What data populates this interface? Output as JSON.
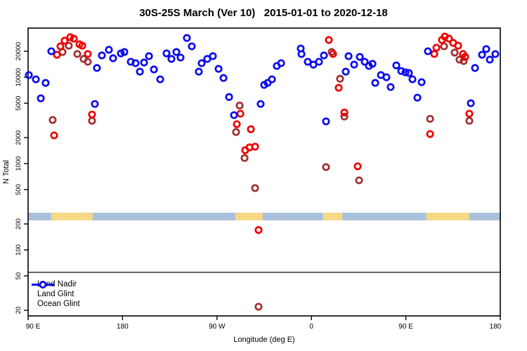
{
  "chart": {
    "title": "30S-25S March (Ver 10)   2015-01-01 to 2020-12-18",
    "xlabel": "Longitude (deg E)",
    "ylabel": "N Total"
  },
  "legend": {
    "items": [
      {
        "label": "Land Nadir",
        "color": "#A12F2F"
      },
      {
        "label": "Land Glint",
        "color": "#EE0000"
      },
      {
        "label": "Ocean Glint",
        "color": "#0B0BEE"
      }
    ]
  },
  "chart_data": {
    "type": "scatter",
    "title": "30S-25S March (Ver 10)   2015-01-01 to 2020-12-18",
    "xlabel": "Longitude (deg E)",
    "ylabel": "N Total",
    "x_axis": {
      "unit": "deg E (wrapping eastward)",
      "range": [
        90,
        540
      ],
      "ticks": [
        {
          "lon": 90,
          "label": "90 E"
        },
        {
          "lon": 180,
          "label": "180"
        },
        {
          "lon": 270,
          "label": "90 W"
        },
        {
          "lon": 360,
          "label": "0"
        },
        {
          "lon": 450,
          "label": "90 E"
        },
        {
          "lon": 540,
          "label": "180"
        }
      ]
    },
    "y_axis": {
      "scale": "log",
      "ticks": [
        20,
        50,
        100,
        200,
        500,
        1000,
        2000,
        5000,
        10000,
        20000
      ],
      "range": [
        16,
        37000
      ]
    },
    "grid": false,
    "legend_position": "bottom-left",
    "hline_value": 55,
    "hline_color": "#222222",
    "surface_band": {
      "value_range": [
        220,
        270
      ],
      "ocean_color": "#A9C1DC",
      "land_color": "#F6D885",
      "segments": [
        {
          "surface": "ocean",
          "from": 90,
          "to": 112
        },
        {
          "surface": "land",
          "from": 112,
          "to": 151.5
        },
        {
          "surface": "ocean",
          "from": 151.5,
          "to": 287.5
        },
        {
          "surface": "land",
          "from": 287.5,
          "to": 313.5
        },
        {
          "surface": "ocean",
          "from": 313.5,
          "to": 371
        },
        {
          "surface": "land",
          "from": 371,
          "to": 389.5
        },
        {
          "surface": "ocean",
          "from": 389.5,
          "to": 469.5
        },
        {
          "surface": "land",
          "from": 469.5,
          "to": 510.5
        },
        {
          "surface": "ocean",
          "from": 510.5,
          "to": 540
        }
      ]
    },
    "series": [
      {
        "name": "Land Nadir",
        "color": "#A12F2F",
        "points": [
          [
            113.4,
            3200
          ],
          [
            122.8,
            19600
          ],
          [
            128.8,
            23200
          ],
          [
            136.9,
            18600
          ],
          [
            142.9,
            16300
          ],
          [
            146.9,
            15100
          ],
          [
            150.9,
            3130
          ],
          [
            288.2,
            2320
          ],
          [
            291.6,
            4700
          ],
          [
            296.3,
            1160
          ],
          [
            306.3,
            520
          ],
          [
            309.6,
            22
          ],
          [
            373.9,
            910
          ],
          [
            379.3,
            19600
          ],
          [
            387.3,
            9600
          ],
          [
            391.4,
            3500
          ],
          [
            405.4,
            640
          ],
          [
            473.1,
            3300
          ],
          [
            486.4,
            22800
          ],
          [
            496.5,
            19300
          ],
          [
            501.1,
            16000
          ],
          [
            505.1,
            15400
          ],
          [
            510.5,
            3130
          ]
        ]
      },
      {
        "name": "Land Glint",
        "color": "#EE0000",
        "points": [
          [
            114.8,
            2120
          ],
          [
            117.5,
            18200
          ],
          [
            120.8,
            22800
          ],
          [
            124.8,
            26500
          ],
          [
            130.2,
            29100
          ],
          [
            133.5,
            28000
          ],
          [
            138.9,
            24100
          ],
          [
            141.6,
            23200
          ],
          [
            146.9,
            18600
          ],
          [
            150.9,
            3700
          ],
          [
            288.9,
            2860
          ],
          [
            292.3,
            3780
          ],
          [
            296.9,
            1430
          ],
          [
            301.0,
            1540
          ],
          [
            302.3,
            2500
          ],
          [
            306.3,
            1570
          ],
          [
            309.6,
            170
          ],
          [
            376.6,
            27000
          ],
          [
            380.6,
            18600
          ],
          [
            386.0,
            7550
          ],
          [
            391.4,
            3900
          ],
          [
            404.1,
            930
          ],
          [
            473.1,
            2200
          ],
          [
            477.1,
            18600
          ],
          [
            479.1,
            22000
          ],
          [
            484.4,
            27000
          ],
          [
            487.1,
            29600
          ],
          [
            491.1,
            28000
          ],
          [
            495.1,
            25000
          ],
          [
            499.8,
            23200
          ],
          [
            504.5,
            18600
          ],
          [
            506.5,
            17200
          ],
          [
            510.5,
            3780
          ]
        ]
      },
      {
        "name": "Ocean Glint",
        "color": "#0B0BEE",
        "points": [
          [
            90.7,
            10600
          ],
          [
            97.4,
            9460
          ],
          [
            102.1,
            5700
          ],
          [
            106.7,
            8600
          ],
          [
            112.1,
            20000
          ],
          [
            153.6,
            4900
          ],
          [
            155.6,
            12800
          ],
          [
            160.3,
            17900
          ],
          [
            167.0,
            20800
          ],
          [
            171.0,
            16600
          ],
          [
            178.4,
            18900
          ],
          [
            181.7,
            19600
          ],
          [
            187.8,
            15100
          ],
          [
            192.4,
            14550
          ],
          [
            196.5,
            11600
          ],
          [
            200.5,
            14800
          ],
          [
            205.2,
            17550
          ],
          [
            209.9,
            12300
          ],
          [
            215.9,
            9460
          ],
          [
            221.9,
            18900
          ],
          [
            226.6,
            16300
          ],
          [
            231.3,
            19600
          ],
          [
            235.3,
            16900
          ],
          [
            241.3,
            28500
          ],
          [
            246.0,
            22800
          ],
          [
            252.7,
            11600
          ],
          [
            255.4,
            14550
          ],
          [
            260.7,
            16300
          ],
          [
            266.1,
            17550
          ],
          [
            271.5,
            12500
          ],
          [
            276.2,
            9800
          ],
          [
            281.5,
            5900
          ],
          [
            286.2,
            3640
          ],
          [
            311.6,
            4900
          ],
          [
            315.0,
            8150
          ],
          [
            318.3,
            8600
          ],
          [
            322.4,
            9460
          ],
          [
            327.0,
            13500
          ],
          [
            331.1,
            14550
          ],
          [
            349.8,
            21500
          ],
          [
            350.5,
            18560
          ],
          [
            356.5,
            15100
          ],
          [
            361.9,
            14000
          ],
          [
            367.2,
            15100
          ],
          [
            371.9,
            17900
          ],
          [
            373.9,
            3080
          ],
          [
            392.7,
            11600
          ],
          [
            395.4,
            17550
          ],
          [
            400.7,
            14000
          ],
          [
            406.1,
            17200
          ],
          [
            410.8,
            15100
          ],
          [
            414.8,
            13500
          ],
          [
            418.2,
            14300
          ],
          [
            420.8,
            8600
          ],
          [
            426.2,
            10600
          ],
          [
            431.5,
            10000
          ],
          [
            435.5,
            7700
          ],
          [
            440.9,
            13700
          ],
          [
            445.6,
            11800
          ],
          [
            449.6,
            11400
          ],
          [
            452.9,
            11200
          ],
          [
            456.3,
            9460
          ],
          [
            461.0,
            5800
          ],
          [
            465.0,
            8770
          ],
          [
            471.0,
            20000
          ],
          [
            511.9,
            5000
          ],
          [
            515.9,
            12800
          ],
          [
            522.6,
            18200
          ],
          [
            526.6,
            21200
          ],
          [
            530.0,
            16000
          ],
          [
            535.3,
            18560
          ]
        ]
      }
    ]
  }
}
